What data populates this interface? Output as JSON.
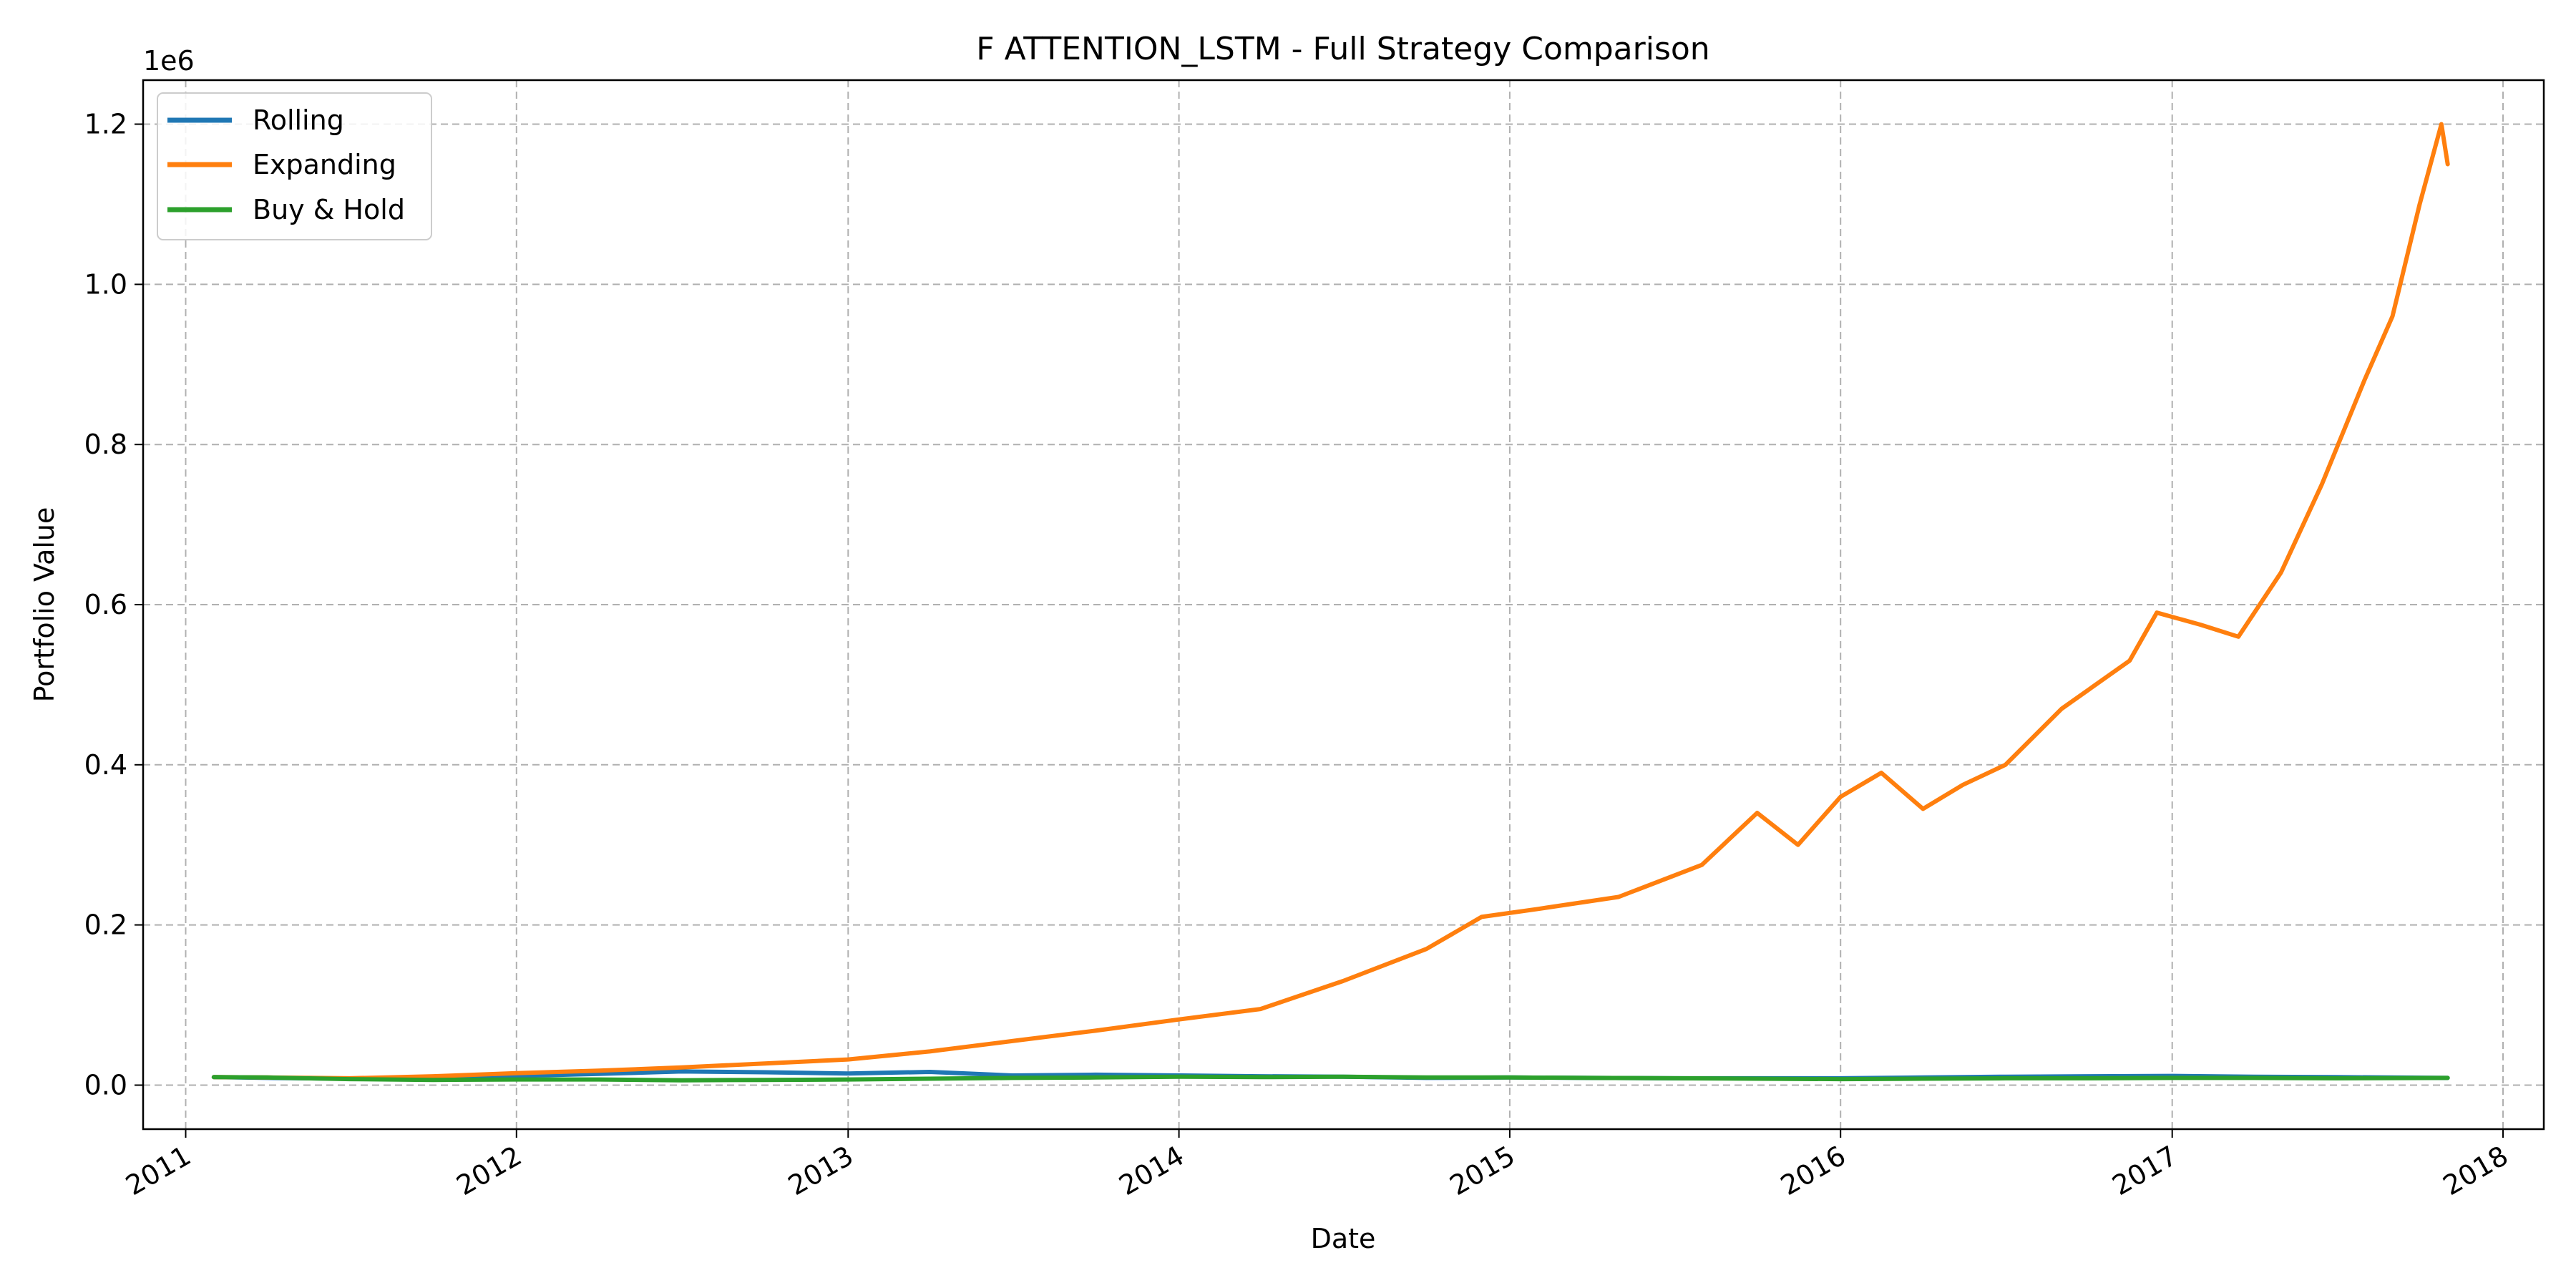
{
  "chart_data": {
    "type": "line",
    "title": "F ATTENTION_LSTM - Full Strategy Comparison",
    "xlabel": "Date",
    "ylabel": "Portfolio Value",
    "y_offset_label": "1e6",
    "xlim": [
      "2010-11-15",
      "2018-02-15"
    ],
    "ylim": [
      -55000,
      1255000
    ],
    "x_ticks": [
      "2011-01-01",
      "2012-01-01",
      "2013-01-01",
      "2014-01-01",
      "2015-01-01",
      "2016-01-01",
      "2017-01-01",
      "2018-01-01"
    ],
    "x_tick_labels": [
      "2011",
      "2012",
      "2013",
      "2014",
      "2015",
      "2016",
      "2017",
      "2018"
    ],
    "y_ticks": [
      0,
      200000,
      400000,
      600000,
      800000,
      1000000,
      1200000
    ],
    "y_tick_labels": [
      "0.0",
      "0.2",
      "0.4",
      "0.6",
      "0.8",
      "1.0",
      "1.2"
    ],
    "grid": true,
    "legend_position": "top-left",
    "series": [
      {
        "name": "Rolling",
        "color": "#1f77b4",
        "points": [
          [
            "2011-02-01",
            10000
          ],
          [
            "2011-04-01",
            9000
          ],
          [
            "2011-07-01",
            8000
          ],
          [
            "2011-10-01",
            9500
          ],
          [
            "2012-01-01",
            11500
          ],
          [
            "2012-04-01",
            14000
          ],
          [
            "2012-07-01",
            17000
          ],
          [
            "2012-10-01",
            16000
          ],
          [
            "2013-01-01",
            14500
          ],
          [
            "2013-04-01",
            16500
          ],
          [
            "2013-07-01",
            12000
          ],
          [
            "2013-10-01",
            13000
          ],
          [
            "2014-01-01",
            12000
          ],
          [
            "2014-04-01",
            11000
          ],
          [
            "2014-07-01",
            10500
          ],
          [
            "2014-10-01",
            9000
          ],
          [
            "2015-01-01",
            9500
          ],
          [
            "2015-04-01",
            9000
          ],
          [
            "2015-07-01",
            8500
          ],
          [
            "2015-10-01",
            8500
          ],
          [
            "2016-01-01",
            8500
          ],
          [
            "2016-04-01",
            9500
          ],
          [
            "2016-07-01",
            10500
          ],
          [
            "2016-10-01",
            11000
          ],
          [
            "2017-01-01",
            11500
          ],
          [
            "2017-04-01",
            10500
          ],
          [
            "2017-07-01",
            10000
          ],
          [
            "2017-11-01",
            9000
          ]
        ]
      },
      {
        "name": "Expanding",
        "color": "#ff7f0e",
        "points": [
          [
            "2011-02-01",
            10000
          ],
          [
            "2011-04-01",
            9500
          ],
          [
            "2011-07-01",
            8500
          ],
          [
            "2011-10-01",
            11000
          ],
          [
            "2012-01-01",
            15000
          ],
          [
            "2012-04-01",
            18000
          ],
          [
            "2012-07-01",
            22000
          ],
          [
            "2012-10-01",
            27000
          ],
          [
            "2013-01-01",
            32000
          ],
          [
            "2013-04-01",
            42000
          ],
          [
            "2013-07-01",
            55000
          ],
          [
            "2013-10-01",
            68000
          ],
          [
            "2014-01-01",
            82000
          ],
          [
            "2014-04-01",
            95000
          ],
          [
            "2014-07-01",
            130000
          ],
          [
            "2014-10-01",
            170000
          ],
          [
            "2014-12-01",
            210000
          ],
          [
            "2015-02-01",
            220000
          ],
          [
            "2015-05-01",
            235000
          ],
          [
            "2015-08-01",
            275000
          ],
          [
            "2015-10-01",
            340000
          ],
          [
            "2015-11-15",
            300000
          ],
          [
            "2016-01-01",
            360000
          ],
          [
            "2016-02-15",
            390000
          ],
          [
            "2016-04-01",
            345000
          ],
          [
            "2016-05-15",
            375000
          ],
          [
            "2016-07-01",
            400000
          ],
          [
            "2016-09-01",
            470000
          ],
          [
            "2016-11-15",
            530000
          ],
          [
            "2016-12-15",
            590000
          ],
          [
            "2017-02-01",
            575000
          ],
          [
            "2017-03-15",
            560000
          ],
          [
            "2017-05-01",
            640000
          ],
          [
            "2017-06-15",
            750000
          ],
          [
            "2017-08-01",
            880000
          ],
          [
            "2017-09-01",
            960000
          ],
          [
            "2017-10-01",
            1100000
          ],
          [
            "2017-10-25",
            1200000
          ],
          [
            "2017-11-01",
            1150000
          ]
        ]
      },
      {
        "name": "Buy & Hold",
        "color": "#2ca02c",
        "points": [
          [
            "2011-02-01",
            10000
          ],
          [
            "2011-04-01",
            9500
          ],
          [
            "2011-07-01",
            7500
          ],
          [
            "2011-10-01",
            6500
          ],
          [
            "2012-01-01",
            7000
          ],
          [
            "2012-04-01",
            7000
          ],
          [
            "2012-07-01",
            6000
          ],
          [
            "2012-10-01",
            6500
          ],
          [
            "2013-01-01",
            7000
          ],
          [
            "2013-04-01",
            8000
          ],
          [
            "2013-07-01",
            9000
          ],
          [
            "2013-10-01",
            9500
          ],
          [
            "2014-01-01",
            10500
          ],
          [
            "2014-04-01",
            10000
          ],
          [
            "2014-07-01",
            10500
          ],
          [
            "2014-10-01",
            9500
          ],
          [
            "2015-01-01",
            9500
          ],
          [
            "2015-04-01",
            9000
          ],
          [
            "2015-07-01",
            8500
          ],
          [
            "2015-10-01",
            8000
          ],
          [
            "2016-01-01",
            7500
          ],
          [
            "2016-04-01",
            8000
          ],
          [
            "2016-07-01",
            8500
          ],
          [
            "2016-10-01",
            8500
          ],
          [
            "2017-01-01",
            9000
          ],
          [
            "2017-04-01",
            9000
          ],
          [
            "2017-07-01",
            8500
          ],
          [
            "2017-11-01",
            9000
          ]
        ]
      }
    ]
  }
}
